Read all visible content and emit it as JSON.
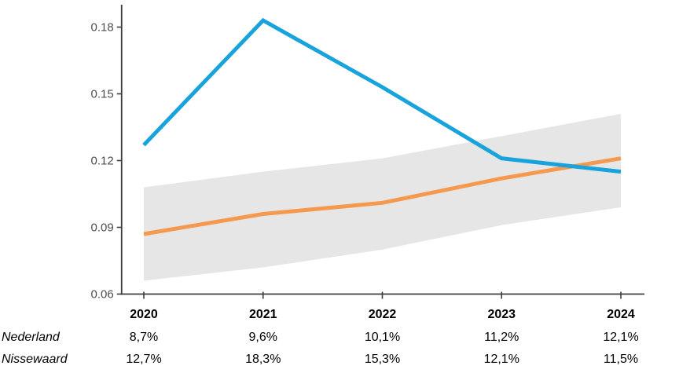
{
  "chart_data": {
    "type": "line",
    "title": "",
    "xlabel": "",
    "ylabel": "",
    "x_categories": [
      "2020",
      "2021",
      "2022",
      "2023",
      "2024"
    ],
    "yticks": [
      "0.06",
      "0.09",
      "0.12",
      "0.15",
      "0.18"
    ],
    "ylim": [
      0.06,
      0.19
    ],
    "grid": false,
    "legend_position": "none",
    "axis_color": "#3d3d3d",
    "tick_label_color": "#4d4d4d",
    "band": {
      "name": "nederland-bandwidth",
      "color": "#e6e6e6",
      "upper": [
        0.108,
        0.115,
        0.121,
        0.131,
        0.141
      ],
      "lower": [
        0.066,
        0.072,
        0.08,
        0.091,
        0.099
      ]
    },
    "series": [
      {
        "name": "Nederland",
        "color": "#f5994e",
        "values": [
          0.087,
          0.096,
          0.101,
          0.112,
          0.121
        ]
      },
      {
        "name": "Nissewaard",
        "color": "#19a3dc",
        "values": [
          0.127,
          0.183,
          0.153,
          0.121,
          0.115
        ]
      }
    ]
  },
  "table": {
    "years": [
      "2020",
      "2021",
      "2022",
      "2023",
      "2024"
    ],
    "rows": [
      {
        "label": "Nederland",
        "values": [
          "8,7%",
          "9,6%",
          "10,1%",
          "11,2%",
          "12,1%"
        ]
      },
      {
        "label": "Nissewaard",
        "values": [
          "12,7%",
          "18,3%",
          "15,3%",
          "12,1%",
          "11,5%"
        ]
      }
    ]
  }
}
